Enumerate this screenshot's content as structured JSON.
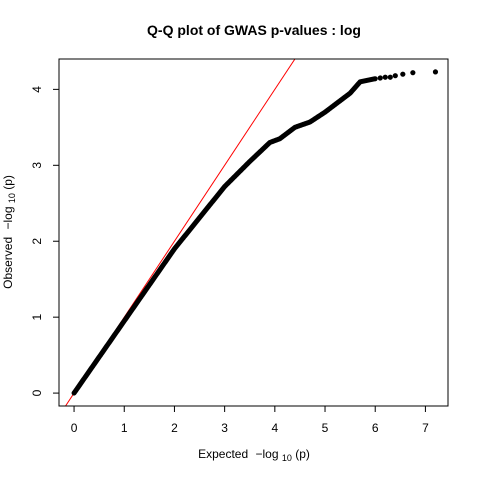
{
  "chart_data": {
    "type": "scatter",
    "title": "Q-Q plot of GWAS p-values : log",
    "xlabel": {
      "prefix": "Expected",
      "expr": "−log",
      "sub": "10",
      "arg": "(p)"
    },
    "ylabel": {
      "prefix": "Observed",
      "expr": "−log",
      "sub": "10",
      "arg": "(p)"
    },
    "xlim": [
      -0.3,
      7.45
    ],
    "ylim": [
      -0.17,
      4.4
    ],
    "x_ticks": [
      "0",
      "1",
      "2",
      "3",
      "4",
      "5",
      "6",
      "7"
    ],
    "y_ticks": [
      "0",
      "1",
      "2",
      "3",
      "4"
    ],
    "reference_line": {
      "slope": 1,
      "intercept": 0,
      "color": "#ff0000"
    },
    "point_color": "#000000",
    "curve_anchors": [
      [
        0.0,
        0.0
      ],
      [
        1.0,
        0.95
      ],
      [
        2.0,
        1.9
      ],
      [
        3.0,
        2.72
      ],
      [
        3.5,
        3.05
      ],
      [
        3.9,
        3.3
      ],
      [
        4.1,
        3.35
      ],
      [
        4.4,
        3.5
      ],
      [
        4.7,
        3.57
      ],
      [
        5.0,
        3.7
      ],
      [
        5.5,
        3.95
      ],
      [
        5.7,
        4.1
      ],
      [
        6.0,
        4.14
      ]
    ],
    "tail_points": [
      [
        6.1,
        4.15
      ],
      [
        6.2,
        4.16
      ],
      [
        6.3,
        4.16
      ],
      [
        6.4,
        4.18
      ],
      [
        6.55,
        4.2
      ],
      [
        6.75,
        4.22
      ],
      [
        7.2,
        4.23
      ]
    ]
  }
}
